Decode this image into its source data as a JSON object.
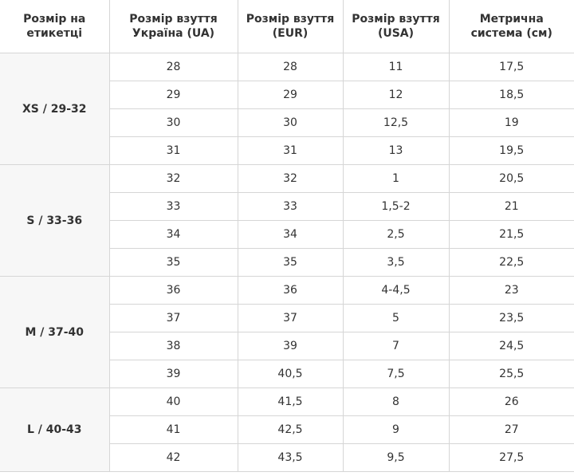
{
  "table": {
    "header": [
      "Розмір на етикетці",
      "Розмір взуття Україна (UA)",
      "Розмір взуття (EUR)",
      "Розмір взуття (USA)",
      "Метрична система (см)"
    ],
    "groups": [
      {
        "label": "XS / 29-32",
        "rows": [
          [
            "28",
            "28",
            "11",
            "17,5"
          ],
          [
            "29",
            "29",
            "12",
            "18,5"
          ],
          [
            "30",
            "30",
            "12,5",
            "19"
          ],
          [
            "31",
            "31",
            "13",
            "19,5"
          ]
        ]
      },
      {
        "label": "S / 33-36",
        "rows": [
          [
            "32",
            "32",
            "1",
            "20,5"
          ],
          [
            "33",
            "33",
            "1,5-2",
            "21"
          ],
          [
            "34",
            "34",
            "2,5",
            "21,5"
          ],
          [
            "35",
            "35",
            "3,5",
            "22,5"
          ]
        ]
      },
      {
        "label": "M / 37-40",
        "rows": [
          [
            "36",
            "36",
            "4-4,5",
            "23"
          ],
          [
            "37",
            "37",
            "5",
            "23,5"
          ],
          [
            "38",
            "39",
            "7",
            "24,5"
          ],
          [
            "39",
            "40,5",
            "7,5",
            "25,5"
          ]
        ]
      },
      {
        "label": "L / 40-43",
        "rows": [
          [
            "40",
            "41,5",
            "8",
            "26"
          ],
          [
            "41",
            "42,5",
            "9",
            "27"
          ],
          [
            "42",
            "43,5",
            "9,5",
            "27,5"
          ]
        ]
      }
    ]
  }
}
